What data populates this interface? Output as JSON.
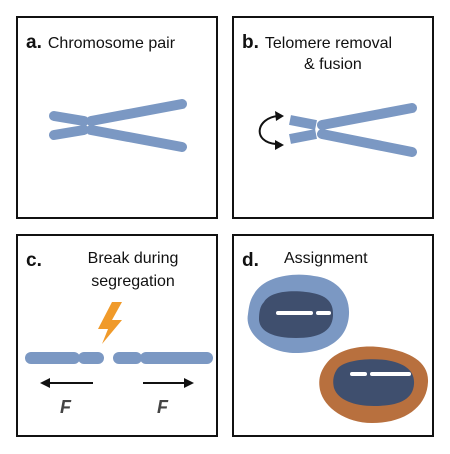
{
  "panels": {
    "a": {
      "letter": "a.",
      "title": "Chromosome pair"
    },
    "b": {
      "letter": "b.",
      "title_line1": "Telomere removal",
      "title_line2": "& fusion"
    },
    "c": {
      "letter": "c.",
      "title_line1": "Break during",
      "title_line2": "segregation",
      "force_left": "F",
      "force_right": "F"
    },
    "d": {
      "letter": "d.",
      "title": "Assignment"
    }
  },
  "colors": {
    "chromosome": "#7b98c3",
    "lightning": "#f09a2a",
    "cell_blue": "#7b98c3",
    "cell_orange": "#b8703e",
    "nucleus": "#3f4f6e",
    "outline": "#111111"
  }
}
